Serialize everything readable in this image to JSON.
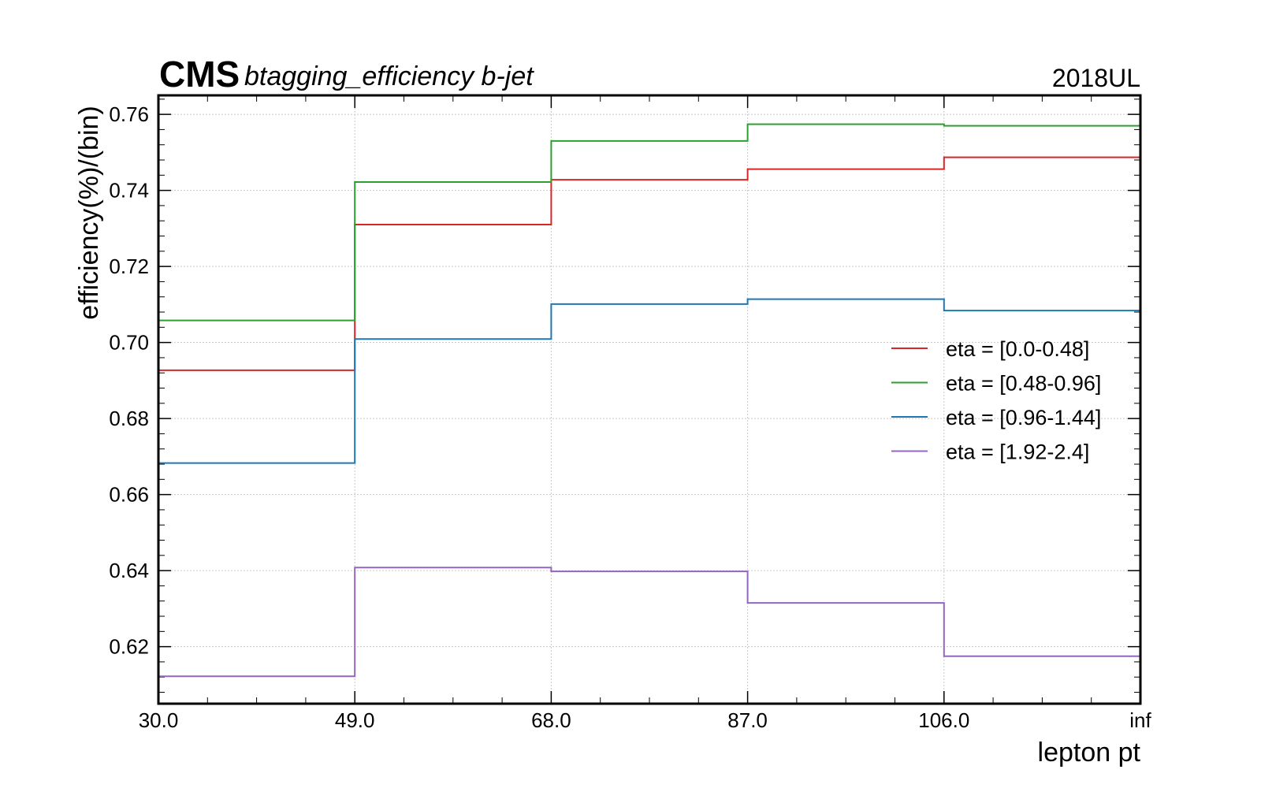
{
  "header": {
    "experiment": "CMS",
    "subtitle": "btagging_efficiency b-jet",
    "right_label": "2018UL"
  },
  "chart_data": {
    "type": "line",
    "step": true,
    "title": "btagging_efficiency b-jet",
    "xlabel": "lepton pt",
    "ylabel": "efficiency(%)/(bin)",
    "bin_edges": [
      30.0,
      49.0,
      68.0,
      87.0,
      106.0,
      "inf"
    ],
    "x_tick_labels": [
      "30.0",
      "49.0",
      "68.0",
      "87.0",
      "106.0",
      "inf"
    ],
    "y_ticks": [
      0.62,
      0.64,
      0.66,
      0.68,
      0.7,
      0.72,
      0.74,
      0.76
    ],
    "y_tick_labels": [
      "0.62",
      "0.64",
      "0.66",
      "0.68",
      "0.70",
      "0.72",
      "0.74",
      "0.76"
    ],
    "ylim": [
      0.605,
      0.765
    ],
    "grid": true,
    "legend_position": "right",
    "series": [
      {
        "name": "eta = [0.0-0.48]",
        "color": "#d62728",
        "values": [
          0.6927,
          0.731,
          0.7428,
          0.7456,
          0.7487
        ]
      },
      {
        "name": "eta = [0.48-0.96]",
        "color": "#2ca02c",
        "values": [
          0.7058,
          0.7422,
          0.753,
          0.7574,
          0.757
        ]
      },
      {
        "name": "eta = [0.96-1.44]",
        "color": "#1f77b4",
        "values": [
          0.6683,
          0.7009,
          0.7101,
          0.7114,
          0.7084
        ]
      },
      {
        "name": "eta = [1.92-2.4]",
        "color": "#9467bd",
        "values": [
          0.6122,
          0.6408,
          0.6398,
          0.6315,
          0.6175
        ]
      }
    ]
  }
}
